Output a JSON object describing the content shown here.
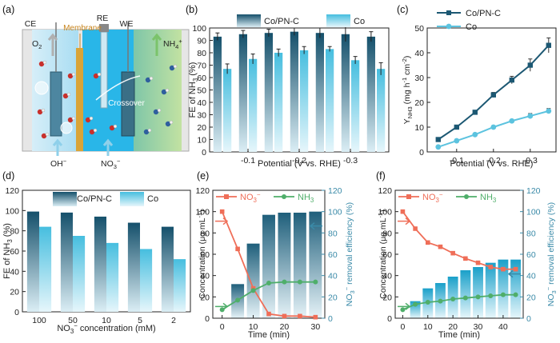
{
  "panel_labels": [
    "(a)",
    "(b)",
    "(c)",
    "(d)",
    "(e)",
    "(f)"
  ],
  "panel_a": {
    "labels": {
      "ce": "CE",
      "re": "RE",
      "we": "WE",
      "membrane": "Membrane",
      "o2": "O",
      "o2_sub": "2",
      "nh4": "NH",
      "nh4_sub": "4",
      "nh4_sup": "+",
      "crossover": "Crossover",
      "oh": "OH",
      "oh_sup": "−",
      "no3": "NO",
      "no3_sub": "3",
      "no3_sup": "−"
    },
    "colors": {
      "left": "#bfe6f7",
      "mid": "#29b6e8",
      "right": "#a8d890",
      "membrane": "#d9a437",
      "electrode": "#3a6f86"
    }
  },
  "colors": {
    "dark": "#1d5a74",
    "light": "#5cc4df",
    "line_dark": "#1c5873",
    "line_light": "#5cc3df",
    "no3": "#ef6e58",
    "nh3": "#4fae6a",
    "axis_right": "#3a8aa8"
  },
  "chart_data": [
    {
      "panel": "b",
      "type": "bar",
      "categories": [
        "",
        "-0.1",
        "",
        "-0.2",
        "",
        "-0.3",
        ""
      ],
      "series": [
        {
          "name": "Co/PN-C",
          "values": [
            93,
            95,
            96,
            97,
            96,
            95,
            93
          ],
          "err": [
            3,
            3,
            3,
            3,
            4,
            6,
            4
          ]
        },
        {
          "name": "Co",
          "values": [
            67,
            75,
            80,
            82,
            83,
            74,
            67
          ],
          "err": [
            4,
            4,
            3,
            3,
            2,
            3,
            5
          ]
        }
      ],
      "xlabel": "Potential (V vs. RHE)",
      "ylabel": "FE of NH",
      "ylabel_sub": "3",
      "ylabel_unit": " (%)",
      "ylim": [
        0,
        100
      ],
      "yticks": [
        0,
        10,
        20,
        30,
        40,
        50,
        60,
        70,
        80,
        90,
        100
      ],
      "legend": "top"
    },
    {
      "panel": "c",
      "type": "line",
      "x": [
        -0.05,
        -0.1,
        -0.15,
        -0.2,
        -0.25,
        -0.3,
        -0.35
      ],
      "series": [
        {
          "name": "Co/PN-C",
          "values": [
            5,
            10,
            16,
            23,
            29,
            35,
            43
          ],
          "err": [
            0,
            0,
            0,
            1,
            1.5,
            2.5,
            3
          ]
        },
        {
          "name": "Co",
          "values": [
            2,
            4.5,
            7,
            10,
            12.5,
            14.5,
            16.5
          ],
          "err": [
            0,
            0,
            0,
            0,
            0,
            1,
            1
          ]
        }
      ],
      "xticks": [
        -0.1,
        -0.2,
        -0.3
      ],
      "xlim": [
        -0.02,
        -0.37
      ],
      "xlabel": "Potential (V vs. RHE)",
      "ylabel_main": "Y",
      "ylabel_sub": "NH3",
      "ylabel_unit": " (mg h",
      "ylabel_sup1": "-1",
      "ylabel_mid": " cm",
      "ylabel_sup2": "-2",
      "ylabel_end": ")",
      "ylim": [
        0,
        50
      ],
      "yticks": [
        0,
        10,
        20,
        30,
        40,
        50
      ],
      "legend": "top-left"
    },
    {
      "panel": "d",
      "type": "bar",
      "categories": [
        "100",
        "50",
        "10",
        "5",
        "2"
      ],
      "series": [
        {
          "name": "Co/PN-C",
          "values": [
            99,
            98,
            94,
            88,
            84
          ]
        },
        {
          "name": "Co",
          "values": [
            84,
            75,
            68,
            62,
            52
          ]
        }
      ],
      "xlabel": "NO",
      "xlabel_sub": "3",
      "xlabel_sup": "−",
      "xlabel_end": " concentration (mM)",
      "ylabel": "FE of NH",
      "ylabel_sub": "3",
      "ylabel_unit": " (%)",
      "ylim": [
        0,
        120
      ],
      "yticks": [
        0,
        20,
        40,
        60,
        80,
        100,
        120
      ],
      "legend": "top"
    },
    {
      "panel": "e",
      "type": "line",
      "x": [
        0,
        5,
        10,
        15,
        20,
        25,
        30
      ],
      "series": [
        {
          "name": "NO",
          "sub": "3",
          "sup": "−",
          "values": [
            100,
            65,
            28,
            4,
            2,
            2,
            1
          ]
        },
        {
          "name": "NH",
          "sub": "3",
          "values": [
            8,
            17,
            26,
            33,
            34,
            34,
            34
          ]
        }
      ],
      "bars": {
        "x": [
          5,
          10,
          15,
          20,
          25,
          30
        ],
        "values": [
          32,
          70,
          97,
          99,
          99,
          100
        ]
      },
      "xlabel": "Time (min)",
      "xticks": [
        0,
        10,
        20,
        30
      ],
      "xlim": [
        -3,
        33
      ],
      "ylabel": "Concentration (μg mL",
      "ylabel_sup": "-1",
      "ylabel_end": ")",
      "ylim": [
        0,
        120
      ],
      "yticks": [
        0,
        20,
        40,
        60,
        80,
        100,
        120
      ],
      "y2label": "NO",
      "y2label_sub": "3",
      "y2label_sup": "−",
      "y2label_end": " removal efficiency (%)",
      "y2lim": [
        0,
        120
      ],
      "legend": "top"
    },
    {
      "panel": "f",
      "type": "line",
      "x": [
        0,
        5,
        10,
        15,
        20,
        25,
        30,
        35,
        40,
        45
      ],
      "series": [
        {
          "name": "NO",
          "sub": "3",
          "sup": "−",
          "values": [
            100,
            84,
            71,
            67,
            61,
            56,
            52,
            48,
            46,
            46
          ]
        },
        {
          "name": "NH",
          "sub": "3",
          "values": [
            8,
            13,
            15,
            16,
            18,
            19,
            20,
            21,
            22,
            22
          ]
        }
      ],
      "bars": {
        "x": [
          5,
          10,
          15,
          20,
          25,
          30,
          35,
          40,
          45
        ],
        "values": [
          16,
          28,
          33,
          39,
          45,
          48,
          52,
          55,
          55
        ]
      },
      "xlabel": "Time (min)",
      "xticks": [
        0,
        10,
        20,
        30,
        40
      ],
      "xlim": [
        -3,
        48
      ],
      "ylabel": "Concentration (μg mL",
      "ylabel_sup": "-1",
      "ylabel_end": ")",
      "ylim": [
        0,
        120
      ],
      "yticks": [
        0,
        20,
        40,
        60,
        80,
        100,
        120
      ],
      "y2label": "NO",
      "y2label_sub": "3",
      "y2label_sup": "−",
      "y2label_end": " removal efficiency (%)",
      "y2lim": [
        0,
        120
      ],
      "legend": "top"
    }
  ]
}
